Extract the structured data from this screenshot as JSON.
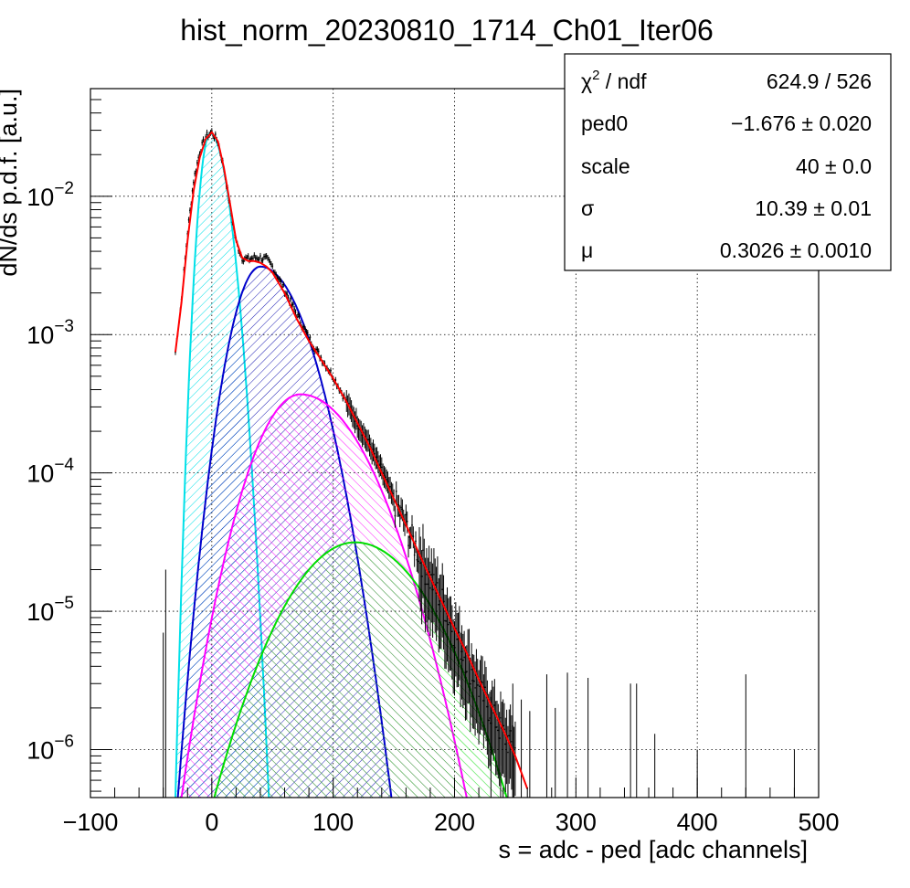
{
  "chart_data": {
    "type": "histogram",
    "title": "hist_norm_20230810_1714_Ch01_Iter06",
    "xlabel": "s = adc - ped [adc channels]",
    "ylabel": "dN/ds p.d.f. [a.u.]",
    "xlim": [
      -100,
      500
    ],
    "ylim": [
      4.5e-07,
      0.06
    ],
    "yscale": "log",
    "grid": true,
    "x_ticks": [
      -100,
      0,
      100,
      200,
      300,
      400,
      500
    ],
    "x_tick_labels": [
      "−100",
      "0",
      "100",
      "200",
      "300",
      "400",
      "500"
    ],
    "y_ticks": [
      {
        "value": 0.01,
        "base": "10",
        "exp": "−2"
      },
      {
        "value": 0.001,
        "base": "10",
        "exp": "−3"
      },
      {
        "value": 0.0001,
        "base": "10",
        "exp": "−4"
      },
      {
        "value": 1e-05,
        "base": "10",
        "exp": "−5"
      },
      {
        "value": 1e-06,
        "base": "10",
        "exp": "−6"
      }
    ],
    "data_points": [
      [
        -30,
        0.00075
      ],
      [
        -25,
        0.0018
      ],
      [
        -20,
        0.0055
      ],
      [
        -15,
        0.013
      ],
      [
        -10,
        0.021
      ],
      [
        -5,
        0.027
      ],
      [
        0,
        0.029
      ],
      [
        5,
        0.025
      ],
      [
        10,
        0.016
      ],
      [
        15,
        0.0085
      ],
      [
        20,
        0.0047
      ],
      [
        25,
        0.0036
      ],
      [
        30,
        0.0035
      ],
      [
        35,
        0.0036
      ],
      [
        40,
        0.0036
      ],
      [
        45,
        0.0035
      ],
      [
        50,
        0.0031
      ],
      [
        60,
        0.0021
      ],
      [
        70,
        0.0014
      ],
      [
        80,
        0.00095
      ],
      [
        90,
        0.00068
      ],
      [
        100,
        0.0005
      ],
      [
        110,
        0.00034
      ],
      [
        120,
        0.00023
      ],
      [
        130,
        0.00016
      ],
      [
        140,
        0.000105
      ],
      [
        150,
        6.5e-05
      ],
      [
        160,
        4.2e-05
      ],
      [
        170,
        2.7e-05
      ],
      [
        180,
        1.7e-05
      ],
      [
        190,
        1.2e-05
      ],
      [
        200,
        7e-06
      ],
      [
        210,
        4.5e-06
      ],
      [
        220,
        2.8e-06
      ],
      [
        230,
        1.9e-06
      ],
      [
        240,
        1.3e-06
      ],
      [
        250,
        1e-06
      ]
    ],
    "total_fit": [
      [
        -30,
        0.00075
      ],
      [
        -25,
        0.0017
      ],
      [
        -20,
        0.0048
      ],
      [
        -15,
        0.011
      ],
      [
        -10,
        0.019
      ],
      [
        -5,
        0.026
      ],
      [
        0,
        0.029
      ],
      [
        5,
        0.025
      ],
      [
        10,
        0.016
      ],
      [
        15,
        0.0088
      ],
      [
        20,
        0.0048
      ],
      [
        25,
        0.0036
      ],
      [
        30,
        0.0034
      ],
      [
        35,
        0.0034
      ],
      [
        40,
        0.0033
      ],
      [
        45,
        0.0031
      ],
      [
        50,
        0.0028
      ],
      [
        60,
        0.002
      ],
      [
        70,
        0.0013
      ],
      [
        80,
        0.0009
      ],
      [
        90,
        0.00066
      ],
      [
        100,
        0.00048
      ],
      [
        110,
        0.00034
      ],
      [
        120,
        0.00023
      ],
      [
        130,
        0.000155
      ],
      [
        140,
        0.0001
      ],
      [
        150,
        6.5e-05
      ],
      [
        160,
        4.2e-05
      ],
      [
        170,
        2.7e-05
      ],
      [
        180,
        1.75e-05
      ],
      [
        190,
        1.15e-05
      ],
      [
        200,
        7.5e-06
      ],
      [
        210,
        5e-06
      ],
      [
        220,
        3.2e-06
      ],
      [
        230,
        2.1e-06
      ],
      [
        240,
        1.4e-06
      ],
      [
        250,
        9e-07
      ],
      [
        260,
        5.2e-07
      ]
    ],
    "components": [
      {
        "peak_x": -1.5,
        "peak_y": 0.0285,
        "range": [
          -30,
          47
        ],
        "color": "#00e0e8",
        "hatch": "single"
      },
      {
        "peak_x": 40,
        "peak_y": 0.0031,
        "range": [
          -28,
          148
        ],
        "color": "#0000cc",
        "hatch": "cross"
      },
      {
        "peak_x": 73,
        "peak_y": 0.00037,
        "range": [
          -25,
          210
        ],
        "color": "#ff00ff",
        "hatch": "single"
      },
      {
        "peak_x": 118,
        "peak_y": 3.15e-05,
        "range": [
          2,
          243
        ],
        "color": "#00dd00",
        "hatch": "single"
      }
    ],
    "sparse_points": [
      [
        -60,
        4.6e-07
      ],
      [
        -40,
        7e-06
      ],
      [
        -38,
        2e-05
      ],
      [
        230,
        2.7e-06
      ],
      [
        238,
        2e-06
      ],
      [
        248,
        3e-06
      ],
      [
        255,
        2.3e-06
      ],
      [
        262,
        1.9e-06
      ],
      [
        276,
        3.5e-06
      ],
      [
        283,
        2e-06
      ],
      [
        293,
        3.6e-06
      ],
      [
        310,
        3.3e-06
      ],
      [
        345,
        3e-06
      ],
      [
        350,
        3e-06
      ],
      [
        365,
        1.3e-06
      ],
      [
        400,
        1e-06
      ],
      [
        440,
        3.5e-06
      ],
      [
        480,
        1e-06
      ]
    ]
  },
  "stats_box": [
    {
      "label_main": "χ",
      "label_sup": "2",
      "label_rest": " / ndf",
      "value": "624.9 / 526"
    },
    {
      "label_main": "ped0",
      "label_sup": "",
      "label_rest": "",
      "value": "−1.676 ± 0.020"
    },
    {
      "label_main": "scale",
      "label_sup": "",
      "label_rest": "",
      "value": "40 ± 0.0"
    },
    {
      "label_main": "σ",
      "label_sup": "",
      "label_rest": "",
      "value": "10.39 ± 0.01"
    },
    {
      "label_main": "μ",
      "label_sup": "",
      "label_rest": "",
      "value": "0.3026 ± 0.0010"
    }
  ],
  "colors": {
    "fit_total": "#ff0000",
    "data": "#000000",
    "grid": "#000000"
  }
}
